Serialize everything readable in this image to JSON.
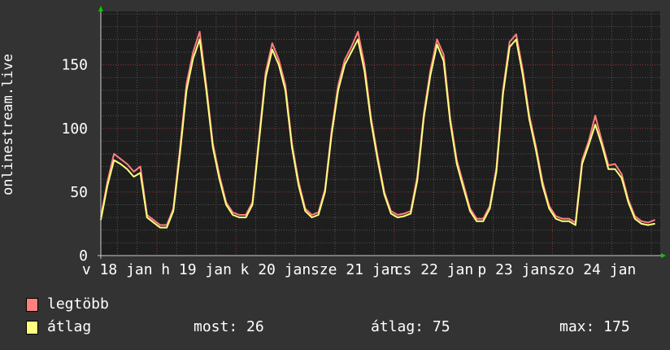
{
  "chart_data": {
    "type": "line",
    "ylabel": "onlinestream.live",
    "ylim": [
      0,
      192
    ],
    "yticks": [
      0,
      50,
      100,
      150
    ],
    "grid": true,
    "xtick_labels": [
      "v 18 jan",
      "h 19 jan",
      "k 20 jan",
      "sze 21 jan",
      "cs 22 jan",
      "p 23 jan",
      "szo 24 jan"
    ],
    "x": [
      "18 07:00",
      "18 09:00",
      "18 11:00",
      "18 13:00",
      "18 15:00",
      "18 17:00",
      "18 19:00",
      "18 21:00",
      "18 23:00",
      "19 01:00",
      "19 03:00",
      "19 05:00",
      "19 07:00",
      "19 09:00",
      "19 11:00",
      "19 13:00",
      "19 15:00",
      "19 17:00",
      "19 19:00",
      "19 21:00",
      "19 23:00",
      "20 01:00",
      "20 03:00",
      "20 05:00",
      "20 07:00",
      "20 09:00",
      "20 11:00",
      "20 13:00",
      "20 15:00",
      "20 17:00",
      "20 19:00",
      "20 21:00",
      "20 23:00",
      "21 01:00",
      "21 03:00",
      "21 05:00",
      "21 07:00",
      "21 09:00",
      "21 11:00",
      "21 13:00",
      "21 15:00",
      "21 17:00",
      "21 19:00",
      "21 21:00",
      "21 23:00",
      "22 01:00",
      "22 03:00",
      "22 05:00",
      "22 07:00",
      "22 09:00",
      "22 11:00",
      "22 13:00",
      "22 15:00",
      "22 17:00",
      "22 19:00",
      "22 21:00",
      "22 23:00",
      "23 01:00",
      "23 03:00",
      "23 05:00",
      "23 07:00",
      "23 09:00",
      "23 11:00",
      "23 13:00",
      "23 15:00",
      "23 17:00",
      "23 19:00",
      "23 21:00",
      "23 23:00",
      "24 01:00",
      "24 03:00",
      "24 05:00",
      "24 07:00",
      "24 09:00",
      "24 11:00",
      "24 13:00",
      "24 15:00",
      "24 17:00",
      "24 19:00",
      "24 21:00",
      "24 23:00",
      "25 01:00",
      "25 03:00",
      "25 05:00",
      "25 07:00"
    ],
    "series": [
      {
        "name": "legtöbb",
        "color": "#ff7f7f",
        "values": [
          30,
          58,
          80,
          76,
          72,
          66,
          70,
          32,
          28,
          24,
          24,
          37,
          84,
          135,
          160,
          176,
          134,
          88,
          63,
          42,
          34,
          32,
          32,
          42,
          93,
          144,
          167,
          154,
          134,
          88,
          58,
          37,
          32,
          34,
          52,
          98,
          134,
          154,
          164,
          176,
          150,
          108,
          78,
          50,
          35,
          32,
          33,
          35,
          62,
          112,
          146,
          170,
          158,
          108,
          75,
          56,
          37,
          29,
          29,
          39,
          69,
          130,
          168,
          174,
          146,
          110,
          86,
          58,
          39,
          31,
          29,
          29,
          26,
          75,
          90,
          110,
          90,
          71,
          72,
          64,
          44,
          31,
          27,
          26,
          28
        ]
      },
      {
        "name": "átlag",
        "color": "#ffff7f",
        "values": [
          28,
          55,
          75,
          72,
          68,
          62,
          65,
          30,
          26,
          22,
          22,
          35,
          80,
          130,
          155,
          170,
          130,
          85,
          60,
          40,
          32,
          30,
          30,
          40,
          90,
          140,
          162,
          150,
          130,
          85,
          55,
          35,
          30,
          32,
          50,
          95,
          130,
          150,
          160,
          170,
          145,
          105,
          75,
          48,
          33,
          30,
          31,
          33,
          59,
          109,
          142,
          166,
          153,
          105,
          72,
          53,
          35,
          27,
          27,
          37,
          66,
          127,
          164,
          170,
          142,
          107,
          83,
          55,
          37,
          29,
          27,
          27,
          24,
          72,
          87,
          103,
          87,
          68,
          68,
          61,
          42,
          29,
          25,
          24,
          25
        ]
      }
    ],
    "legend": [
      {
        "label": "legtöbb",
        "color": "#ff7f7f"
      },
      {
        "label": "átlag",
        "color": "#ffff7f"
      }
    ],
    "stats": {
      "most": "most: 26",
      "atlag": "átlag: 75",
      "max": "max: 175"
    }
  }
}
